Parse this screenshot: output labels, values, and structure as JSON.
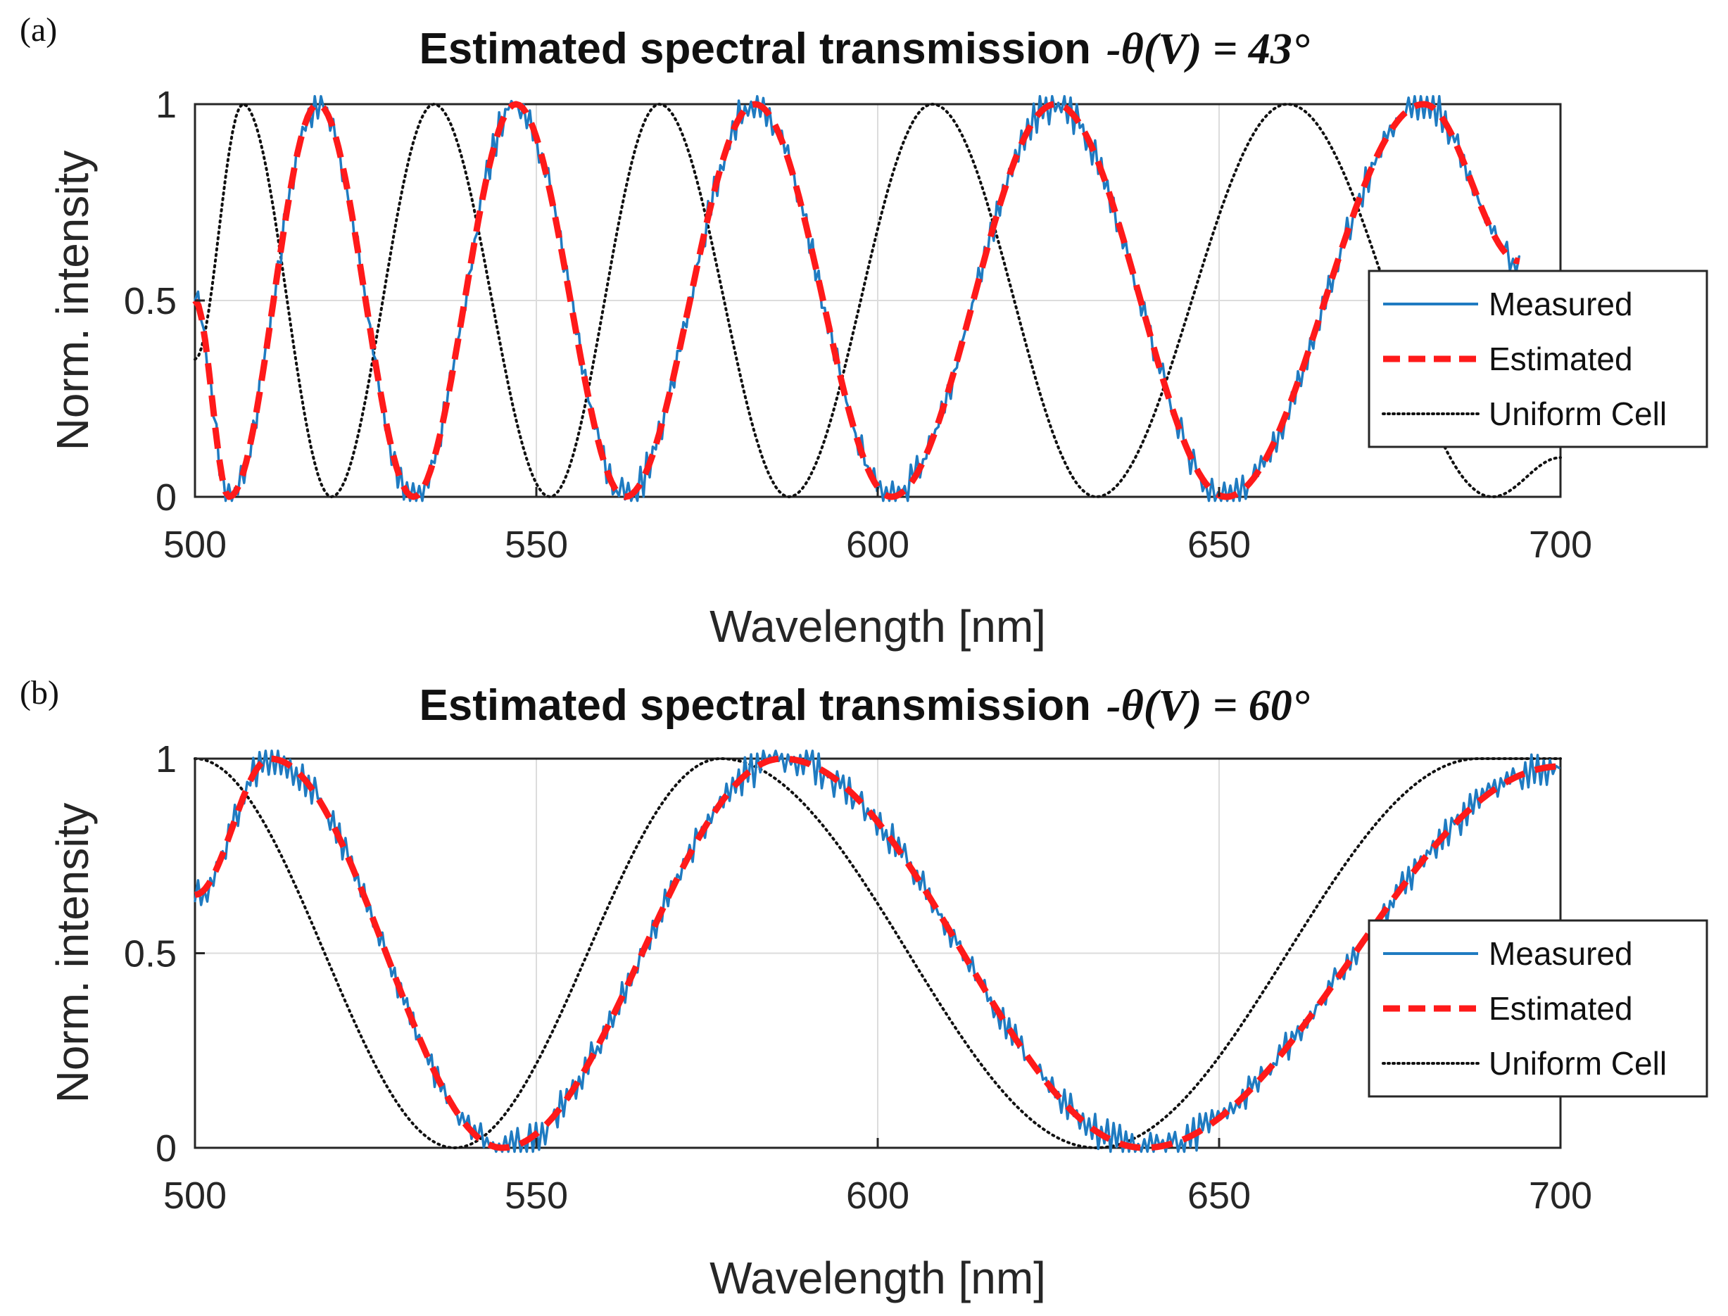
{
  "chart_data": [
    {
      "type": "line",
      "panel_label": "(a)",
      "title": "Estimated spectral transmission",
      "title_suffix": "-θ(V) = 43°",
      "xlabel": "Wavelength [nm]",
      "ylabel": "Norm. intensity",
      "xlim": [
        500,
        700
      ],
      "ylim": [
        0,
        1
      ],
      "x_ticks": [
        "500",
        "550",
        "600",
        "650",
        "700"
      ],
      "y_ticks": [
        "0",
        "0.5",
        "1"
      ],
      "grid": true,
      "legend_position": "right",
      "series": [
        {
          "name": "Measured",
          "style": "solid",
          "color": "#1f7bc1",
          "noise": true,
          "x": [
            500,
            505,
            518,
            532,
            547,
            563,
            582,
            602,
            626,
            651,
            680,
            694
          ],
          "y": [
            0.5,
            0.0,
            1.0,
            0.0,
            1.0,
            0.0,
            1.0,
            0.0,
            1.0,
            0.0,
            1.0,
            0.6
          ]
        },
        {
          "name": "Estimated",
          "style": "dashed",
          "color": "#ff1a1a",
          "x": [
            500,
            505,
            518,
            532,
            547,
            563,
            582,
            602,
            626,
            651,
            680,
            694
          ],
          "y": [
            0.5,
            0.0,
            1.0,
            0.0,
            1.0,
            0.0,
            1.0,
            0.0,
            1.0,
            0.0,
            1.0,
            0.6
          ]
        },
        {
          "name": "Uniform Cell",
          "style": "dotted",
          "color": "#111111",
          "x": [
            500,
            507,
            520,
            535,
            552,
            568,
            587,
            608,
            632,
            660,
            690,
            700
          ],
          "y": [
            0.35,
            1.0,
            0.0,
            1.0,
            0.0,
            1.0,
            0.0,
            1.0,
            0.0,
            1.0,
            0.0,
            0.1
          ]
        }
      ]
    },
    {
      "type": "line",
      "panel_label": "(b)",
      "title": "Estimated spectral transmission",
      "title_suffix": "-θ(V) = 60°",
      "xlabel": "Wavelength [nm]",
      "ylabel": "Norm. intensity",
      "xlim": [
        500,
        700
      ],
      "ylim": [
        0,
        1
      ],
      "x_ticks": [
        "500",
        "550",
        "600",
        "650",
        "700"
      ],
      "y_ticks": [
        "0",
        "0.5",
        "1"
      ],
      "grid": true,
      "legend_position": "right",
      "series": [
        {
          "name": "Measured",
          "style": "solid",
          "color": "#1f7bc1",
          "noise": true,
          "x": [
            500,
            511,
            545,
            586,
            639,
            700
          ],
          "y": [
            0.65,
            1.0,
            0.0,
            1.0,
            0.0,
            0.98
          ]
        },
        {
          "name": "Estimated",
          "style": "dashed",
          "color": "#ff1a1a",
          "x": [
            500,
            511,
            545,
            586,
            639,
            700
          ],
          "y": [
            0.65,
            1.0,
            0.0,
            1.0,
            0.0,
            0.98
          ]
        },
        {
          "name": "Uniform Cell",
          "style": "dotted",
          "color": "#111111",
          "x": [
            500,
            538,
            577,
            632,
            688,
            700
          ],
          "y": [
            1.0,
            0.0,
            1.0,
            0.0,
            1.0,
            1.0
          ]
        }
      ]
    }
  ]
}
